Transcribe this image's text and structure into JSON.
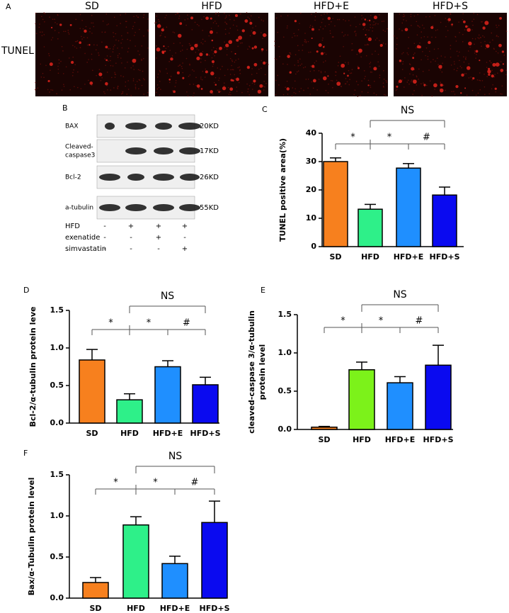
{
  "panel_a": {
    "label": "A",
    "row_label": "TUNEL",
    "columns": [
      "SD",
      "HFD",
      "HFD+E",
      "HFD+S"
    ]
  },
  "blot": {
    "label": "B",
    "rows": [
      {
        "name": [
          "BAX"
        ],
        "kd": "20KD"
      },
      {
        "name": [
          "Cleaved-",
          "caspase3"
        ],
        "kd": "17KD"
      },
      {
        "name": [
          "Bcl-2"
        ],
        "kd": "26KD"
      },
      {
        "name": [
          "a-tubulin"
        ],
        "kd": "55KD"
      }
    ],
    "treatments": [
      {
        "name": "HFD",
        "signs": [
          "-",
          "+",
          "+",
          "+"
        ]
      },
      {
        "name": "exenatide",
        "signs": [
          "-",
          "-",
          "+",
          "-"
        ]
      },
      {
        "name": "simvastatin",
        "signs": [
          "-",
          "-",
          "-",
          "+"
        ]
      }
    ]
  },
  "chart_data": [
    {
      "type": "bar",
      "label": "C",
      "y_label": [
        "TUNEL positive area(%)"
      ],
      "categories": [
        "SD",
        "HFD",
        "HFD+E",
        "HFD+S"
      ],
      "values": [
        30,
        13.2,
        27.7,
        18.2
      ],
      "errors": [
        1.3,
        1.7,
        1.6,
        2.8
      ],
      "colors": [
        "#f7801e",
        "#2ef089",
        "#1f8fff",
        "#0a0af0"
      ],
      "ylim": [
        0,
        40
      ],
      "yticks": [
        0,
        10,
        20,
        30,
        40
      ],
      "annotations": [
        "*",
        "*",
        "#",
        "NS"
      ]
    },
    {
      "type": "bar",
      "label": "D",
      "y_label": [
        "Bcl-2/α-tubulin protein leve"
      ],
      "categories": [
        "SD",
        "HFD",
        "HFD+E",
        "HFD+S"
      ],
      "values": [
        0.84,
        0.31,
        0.75,
        0.51
      ],
      "errors": [
        0.14,
        0.08,
        0.08,
        0.1
      ],
      "colors": [
        "#f7801e",
        "#2ef089",
        "#1f8fff",
        "#0a0af0"
      ],
      "ylim": [
        0,
        1.5
      ],
      "yticks": [
        {
          "value": 0,
          "label": "0.0"
        },
        {
          "value": 0.5,
          "label": "0.5"
        },
        {
          "value": 1,
          "label": "1.0"
        },
        {
          "value": 1.5,
          "label": "1.5"
        }
      ],
      "annotations": [
        "*",
        "*",
        "#",
        "NS"
      ]
    },
    {
      "type": "bar",
      "label": "E",
      "y_label": [
        "cleaved-caspase 3/α-tubulin",
        "protein level"
      ],
      "categories": [
        "SD",
        "HFD",
        "HFD+E",
        "HFD+S"
      ],
      "values": [
        0.03,
        0.78,
        0.61,
        0.84
      ],
      "errors": [
        0.01,
        0.1,
        0.08,
        0.26
      ],
      "colors": [
        "#f7801e",
        "#7cf21a",
        "#1f8fff",
        "#0a0af0"
      ],
      "ylim": [
        0,
        1.5
      ],
      "yticks": [
        {
          "value": 0,
          "label": "0.0"
        },
        {
          "value": 0.5,
          "label": "0.5"
        },
        {
          "value": 1,
          "label": "1.0"
        },
        {
          "value": 1.5,
          "label": "1.5"
        }
      ],
      "annotations": [
        "*",
        "*",
        "#",
        "NS"
      ]
    },
    {
      "type": "bar",
      "label": "F",
      "y_label": [
        "Bax/α-Tubulin protein level"
      ],
      "categories": [
        "SD",
        "HFD",
        "HFD+E",
        "HFD+S"
      ],
      "values": [
        0.19,
        0.89,
        0.42,
        0.92
      ],
      "errors": [
        0.06,
        0.1,
        0.09,
        0.26
      ],
      "colors": [
        "#f7801e",
        "#2ef089",
        "#1f8fff",
        "#0a0af0"
      ],
      "ylim": [
        0,
        1.5
      ],
      "yticks": [
        {
          "value": 0,
          "label": "0.0"
        },
        {
          "value": 0.5,
          "label": "0.5"
        },
        {
          "value": 1,
          "label": "1.0"
        },
        {
          "value": 1.5,
          "label": "1.5"
        }
      ],
      "annotations": [
        "*",
        "*",
        "#",
        "NS"
      ]
    }
  ]
}
